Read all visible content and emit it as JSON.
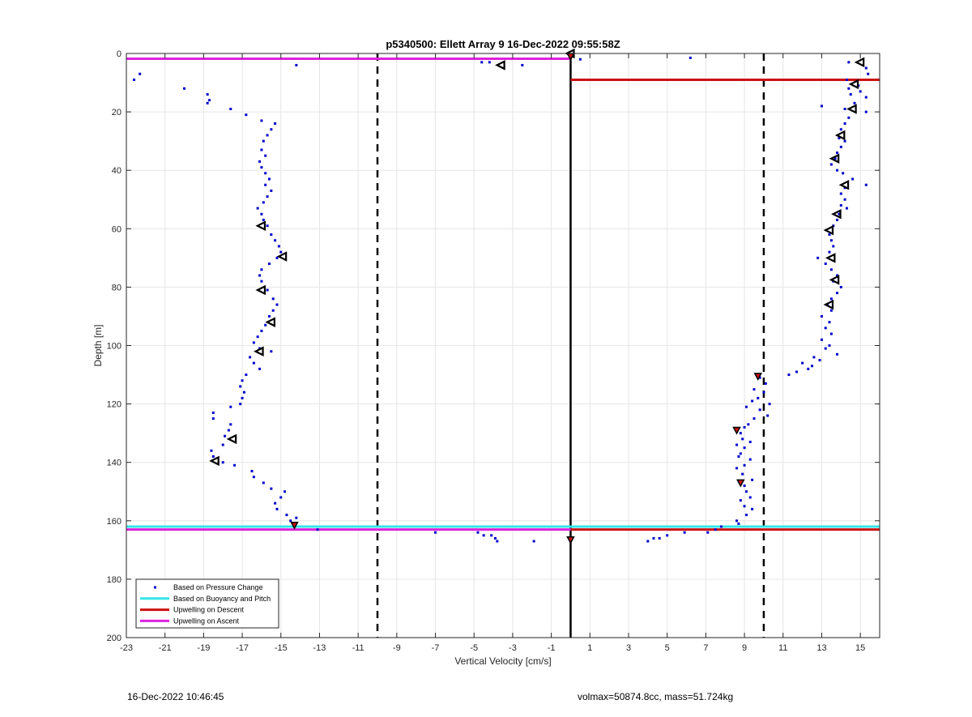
{
  "chart_data": {
    "type": "scatter",
    "title": "p5340500: Ellett Array 9 16-Dec-2022 09:55:58Z",
    "xlabel": "Vertical Velocity [cm/s]",
    "ylabel": "Depth [m]",
    "xlim": [
      -23,
      16
    ],
    "ylim": [
      0,
      200
    ],
    "y_reversed": true,
    "grid": true,
    "legend_position": "bottom-left",
    "x_ticks": [
      -23,
      -21,
      -19,
      -17,
      -15,
      -13,
      -11,
      -9,
      -7,
      -5,
      -3,
      -1,
      1,
      3,
      5,
      7,
      9,
      11,
      13,
      15
    ],
    "x_tick_labels": [
      "-23",
      "-21",
      "-19",
      "-17",
      "-15",
      "-13",
      "-11",
      "-9",
      "-7",
      "-5",
      "-3",
      "-1",
      "1",
      "3",
      "5",
      "7",
      "9",
      "11",
      "13",
      "15"
    ],
    "y_ticks": [
      0,
      20,
      40,
      60,
      80,
      100,
      120,
      140,
      160,
      180,
      200
    ],
    "y_tick_labels": [
      "0",
      "20",
      "40",
      "60",
      "80",
      "100",
      "120",
      "140",
      "160",
      "180",
      "200"
    ],
    "legend": [
      {
        "label": "Based on Pressure Change",
        "color": "#0000cc",
        "kind": "dot"
      },
      {
        "label": "Based on Buoyancy and Pitch",
        "color": "#33e5e5",
        "kind": "line"
      },
      {
        "label": "Upwelling on Descent",
        "color": "#cc1111",
        "kind": "line"
      },
      {
        "label": "Upwelling on Ascent",
        "color": "#dd22dd",
        "kind": "line"
      }
    ],
    "reference_lines": [
      {
        "x": -10,
        "style": "dashed",
        "color": "#000000"
      },
      {
        "x": 10,
        "style": "dashed",
        "color": "#000000"
      },
      {
        "x": 0,
        "style": "solid",
        "color": "#000000"
      }
    ],
    "series": [
      {
        "name": "Based on Pressure Change",
        "color": "#0000cc",
        "marker": "dot",
        "points": [
          [
            -22.6,
            9
          ],
          [
            -22.3,
            7
          ],
          [
            -14.2,
            4
          ],
          [
            -20.0,
            12
          ],
          [
            -18.8,
            14
          ],
          [
            -18.7,
            16
          ],
          [
            -18.8,
            17
          ],
          [
            -17.6,
            19
          ],
          [
            -16.8,
            21
          ],
          [
            -16.0,
            23
          ],
          [
            -15.3,
            24
          ],
          [
            -15.5,
            26
          ],
          [
            -15.7,
            28
          ],
          [
            -15.9,
            30
          ],
          [
            -16.0,
            33
          ],
          [
            -15.8,
            35
          ],
          [
            -16.1,
            37
          ],
          [
            -16.0,
            39
          ],
          [
            -15.8,
            41
          ],
          [
            -15.6,
            43
          ],
          [
            -15.8,
            45
          ],
          [
            -15.5,
            47
          ],
          [
            -15.7,
            49
          ],
          [
            -15.9,
            51
          ],
          [
            -16.2,
            53
          ],
          [
            -16.0,
            55
          ],
          [
            -15.9,
            57
          ],
          [
            -15.7,
            59
          ],
          [
            -15.5,
            62
          ],
          [
            -15.3,
            64
          ],
          [
            -15.1,
            66
          ],
          [
            -15.0,
            68
          ],
          [
            -15.2,
            70
          ],
          [
            -15.6,
            72
          ],
          [
            -16.0,
            74
          ],
          [
            -16.1,
            76
          ],
          [
            -16.0,
            78
          ],
          [
            -15.7,
            81
          ],
          [
            -15.4,
            84
          ],
          [
            -15.2,
            86
          ],
          [
            -15.4,
            88
          ],
          [
            -15.6,
            90
          ],
          [
            -15.8,
            93
          ],
          [
            -16.0,
            95
          ],
          [
            -16.2,
            97
          ],
          [
            -16.4,
            99
          ],
          [
            -16.1,
            101
          ],
          [
            -15.5,
            102
          ],
          [
            -16.6,
            104
          ],
          [
            -16.4,
            106
          ],
          [
            -16.1,
            108
          ],
          [
            -16.8,
            110
          ],
          [
            -17.0,
            112
          ],
          [
            -17.1,
            114
          ],
          [
            -16.9,
            116
          ],
          [
            -17.0,
            118
          ],
          [
            -17.1,
            120
          ],
          [
            -17.6,
            121
          ],
          [
            -18.5,
            123
          ],
          [
            -18.5,
            125
          ],
          [
            -17.6,
            127
          ],
          [
            -17.7,
            129
          ],
          [
            -17.9,
            131
          ],
          [
            -18.0,
            134
          ],
          [
            -18.6,
            136
          ],
          [
            -18.5,
            138
          ],
          [
            -18.0,
            140
          ],
          [
            -17.4,
            141
          ],
          [
            -16.5,
            143
          ],
          [
            -16.4,
            145
          ],
          [
            -15.9,
            147
          ],
          [
            -15.5,
            149
          ],
          [
            -14.8,
            150
          ],
          [
            -15.0,
            152
          ],
          [
            -15.3,
            154
          ],
          [
            -15.2,
            156
          ],
          [
            -14.7,
            158
          ],
          [
            -14.2,
            159
          ],
          [
            -14.5,
            160
          ],
          [
            -13.1,
            163
          ],
          [
            -7.0,
            164
          ],
          [
            -4.8,
            164
          ],
          [
            -4.5,
            165
          ],
          [
            -4.1,
            165
          ],
          [
            -3.9,
            166
          ],
          [
            -3.8,
            167
          ],
          [
            -1.9,
            167
          ],
          [
            -4.6,
            3
          ],
          [
            -4.2,
            3
          ],
          [
            -2.5,
            4
          ],
          [
            0.5,
            2
          ],
          [
            6.2,
            1.5
          ],
          [
            9.8,
            111
          ],
          [
            10.1,
            113
          ],
          [
            9.5,
            115
          ],
          [
            10.0,
            116
          ],
          [
            9.7,
            118
          ],
          [
            9.4,
            119
          ],
          [
            10.3,
            120
          ],
          [
            9.1,
            121
          ],
          [
            9.8,
            122
          ],
          [
            10.2,
            124
          ],
          [
            9.5,
            125
          ],
          [
            9.2,
            127
          ],
          [
            9.0,
            128
          ],
          [
            8.8,
            130
          ],
          [
            8.9,
            132
          ],
          [
            9.3,
            133
          ],
          [
            8.6,
            134
          ],
          [
            9.0,
            135
          ],
          [
            8.8,
            137
          ],
          [
            8.7,
            138
          ],
          [
            9.3,
            139
          ],
          [
            9.0,
            141
          ],
          [
            8.6,
            142
          ],
          [
            8.9,
            144
          ],
          [
            9.4,
            146
          ],
          [
            9.0,
            148
          ],
          [
            9.1,
            150
          ],
          [
            9.3,
            152
          ],
          [
            8.8,
            153
          ],
          [
            9.0,
            155
          ],
          [
            9.4,
            156
          ],
          [
            9.1,
            158
          ],
          [
            8.6,
            160
          ],
          [
            8.7,
            161
          ],
          [
            7.8,
            162
          ],
          [
            7.5,
            163
          ],
          [
            7.1,
            164
          ],
          [
            5.9,
            164
          ],
          [
            5.0,
            165
          ],
          [
            4.6,
            166
          ],
          [
            4.3,
            166
          ],
          [
            4.0,
            167
          ],
          [
            14.4,
            3
          ],
          [
            15.3,
            5
          ],
          [
            15.4,
            7
          ],
          [
            14.3,
            9
          ],
          [
            14.9,
            11
          ],
          [
            14.4,
            12
          ],
          [
            15.0,
            13
          ],
          [
            14.5,
            14
          ],
          [
            15.3,
            15
          ],
          [
            14.7,
            17
          ],
          [
            13.0,
            18
          ],
          [
            14.2,
            19
          ],
          [
            15.3,
            20
          ],
          [
            14.4,
            22
          ],
          [
            14.2,
            24
          ],
          [
            14.0,
            26
          ],
          [
            13.9,
            29
          ],
          [
            14.2,
            30
          ],
          [
            14.0,
            32
          ],
          [
            13.8,
            34
          ],
          [
            13.7,
            36
          ],
          [
            13.5,
            38
          ],
          [
            13.8,
            40
          ],
          [
            14.1,
            41
          ],
          [
            14.6,
            43
          ],
          [
            15.3,
            45
          ],
          [
            14.2,
            46
          ],
          [
            14.0,
            48
          ],
          [
            14.2,
            50
          ],
          [
            14.0,
            52
          ],
          [
            14.3,
            53
          ],
          [
            13.9,
            55
          ],
          [
            13.8,
            57
          ],
          [
            13.6,
            59
          ],
          [
            13.4,
            62
          ],
          [
            13.5,
            64
          ],
          [
            13.6,
            66
          ],
          [
            13.4,
            68
          ],
          [
            12.8,
            70
          ],
          [
            13.2,
            72
          ],
          [
            13.5,
            74
          ],
          [
            13.8,
            76
          ],
          [
            13.6,
            78
          ],
          [
            14.0,
            80
          ],
          [
            13.8,
            82
          ],
          [
            13.5,
            84
          ],
          [
            13.3,
            86
          ],
          [
            13.5,
            88
          ],
          [
            13.0,
            90
          ],
          [
            13.4,
            92
          ],
          [
            13.2,
            94
          ],
          [
            13.5,
            96
          ],
          [
            13.0,
            98
          ],
          [
            13.4,
            100
          ],
          [
            13.2,
            101
          ],
          [
            13.8,
            103
          ],
          [
            12.6,
            104
          ],
          [
            12.9,
            105
          ],
          [
            12.0,
            106
          ],
          [
            12.5,
            107
          ],
          [
            12.3,
            108
          ],
          [
            11.7,
            109
          ],
          [
            11.3,
            110
          ]
        ]
      },
      {
        "name": "Based on Buoyancy and Pitch",
        "color": "#33e5e5",
        "marker": "line",
        "points": [
          [
            -23,
            162
          ],
          [
            16,
            162
          ]
        ]
      },
      {
        "name": "Upwelling on Descent",
        "color": "#cc1111",
        "marker": "line",
        "points": [
          [
            0,
            9
          ],
          [
            16,
            9
          ],
          [
            0,
            163
          ],
          [
            16,
            163
          ]
        ]
      },
      {
        "name": "Upwelling on Ascent",
        "color": "#dd22dd",
        "marker": "line",
        "points": [
          [
            -23,
            1.8
          ],
          [
            0,
            1.8
          ],
          [
            -23,
            163
          ],
          [
            0,
            163
          ]
        ]
      },
      {
        "name": "Triangle markers",
        "color": "#000000",
        "marker": "triangle",
        "points": [
          [
            0,
            0
          ],
          [
            -3.6,
            4
          ],
          [
            15.0,
            3
          ],
          [
            14.7,
            10.5
          ],
          [
            14.6,
            19
          ],
          [
            14.0,
            28
          ],
          [
            13.7,
            36
          ],
          [
            14.2,
            45
          ],
          [
            13.8,
            55
          ],
          [
            13.4,
            60.5
          ],
          [
            13.5,
            70
          ],
          [
            13.7,
            77.5
          ],
          [
            13.4,
            86
          ],
          [
            -16.0,
            59
          ],
          [
            -14.9,
            69.5
          ],
          [
            -16.0,
            81
          ],
          [
            -15.5,
            92
          ],
          [
            -16.1,
            102
          ],
          [
            -17.5,
            132
          ],
          [
            -18.4,
            139.5
          ]
        ]
      },
      {
        "name": "Red-filled markers",
        "color": "#cc1111",
        "marker": "triangle-filled",
        "points": [
          [
            9.7,
            110.5
          ],
          [
            8.6,
            129
          ],
          [
            8.8,
            147
          ],
          [
            -14.3,
            161.5
          ],
          [
            0,
            166.5
          ],
          [
            0,
            1
          ]
        ]
      }
    ]
  },
  "footer": {
    "timestamp": "16-Dec-2022 10:46:45",
    "info": "volmax=50874.8cc, mass=51.724kg"
  }
}
